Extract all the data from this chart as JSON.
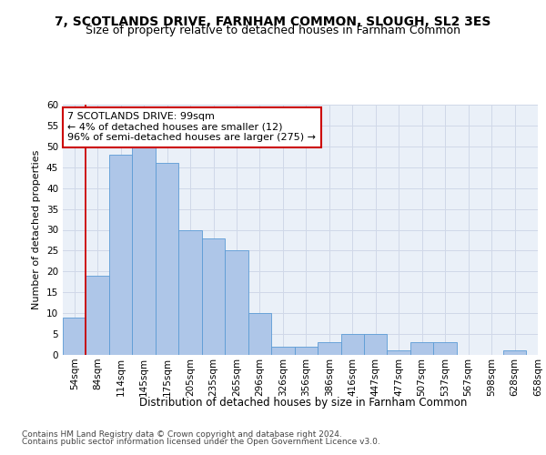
{
  "title1": "7, SCOTLANDS DRIVE, FARNHAM COMMON, SLOUGH, SL2 3ES",
  "title2": "Size of property relative to detached houses in Farnham Common",
  "xlabel": "Distribution of detached houses by size in Farnham Common",
  "ylabel": "Number of detached properties",
  "bin_labels": [
    "54sqm",
    "84sqm",
    "114sqm",
    "145sqm",
    "175sqm",
    "205sqm",
    "235sqm",
    "265sqm",
    "296sqm",
    "326sqm",
    "356sqm",
    "386sqm",
    "416sqm",
    "447sqm",
    "477sqm",
    "507sqm",
    "537sqm",
    "567sqm",
    "598sqm",
    "628sqm",
    "658sqm"
  ],
  "bar_heights": [
    9,
    19,
    48,
    50,
    46,
    30,
    28,
    25,
    10,
    2,
    2,
    3,
    5,
    5,
    1,
    3,
    3,
    0,
    0,
    1
  ],
  "bar_color": "#aec6e8",
  "bar_edge_color": "#5b9bd5",
  "vline_x_idx": 1,
  "vline_color": "#cc0000",
  "annotation_text": "7 SCOTLANDS DRIVE: 99sqm\n← 4% of detached houses are smaller (12)\n96% of semi-detached houses are larger (275) →",
  "annotation_box_color": "#ffffff",
  "annotation_box_edge": "#cc0000",
  "ylim": [
    0,
    60
  ],
  "yticks": [
    0,
    5,
    10,
    15,
    20,
    25,
    30,
    35,
    40,
    45,
    50,
    55,
    60
  ],
  "grid_color": "#d0d8e8",
  "background_color": "#eaf0f8",
  "footnote1": "Contains HM Land Registry data © Crown copyright and database right 2024.",
  "footnote2": "Contains public sector information licensed under the Open Government Licence v3.0.",
  "title1_fontsize": 10,
  "title2_fontsize": 9,
  "xlabel_fontsize": 8.5,
  "ylabel_fontsize": 8,
  "tick_fontsize": 7.5,
  "annotation_fontsize": 8,
  "footnote_fontsize": 6.5
}
